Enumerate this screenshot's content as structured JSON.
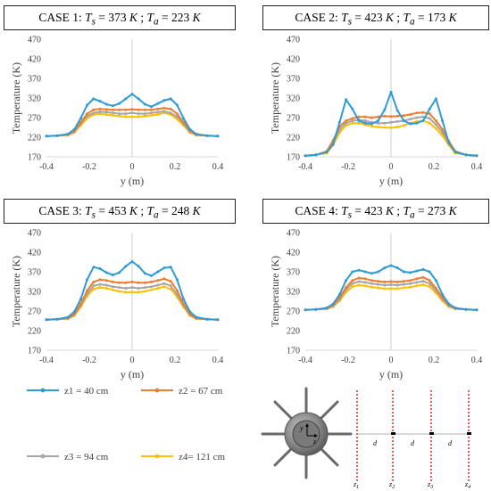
{
  "colors": {
    "z1": "#2E9BD6",
    "z2": "#ED7D31",
    "z3": "#A5A5A5",
    "z4": "#FFC000",
    "axis": "#d9d9d9",
    "text": "#404040",
    "probe": "#e00000"
  },
  "chart_data": [
    {
      "type": "line",
      "title": {
        "prefix": "CASE 1: ",
        "ts_value": "373",
        "ta_value": "223"
      },
      "xlabel": "y (m)",
      "ylabel": "Temperature (K)",
      "xlim": [
        -0.4,
        0.4
      ],
      "ylim": [
        170,
        470
      ],
      "xticks": [
        "-0.4",
        "-0.2",
        "0",
        "0.2",
        "0.4"
      ],
      "yticks": [
        "170",
        "220",
        "270",
        "320",
        "370",
        "420",
        "470"
      ],
      "x": [
        -0.4,
        -0.35,
        -0.3,
        -0.27,
        -0.24,
        -0.21,
        -0.18,
        -0.15,
        -0.12,
        -0.09,
        -0.06,
        -0.03,
        0,
        0.03,
        0.06,
        0.09,
        0.12,
        0.15,
        0.18,
        0.21,
        0.24,
        0.27,
        0.3,
        0.35,
        0.4
      ],
      "series": [
        {
          "name": "z1 = 40 cm",
          "values": [
            223,
            224,
            228,
            240,
            268,
            302,
            318,
            312,
            304,
            300,
            306,
            318,
            330,
            318,
            304,
            298,
            306,
            314,
            318,
            302,
            268,
            240,
            228,
            224,
            223
          ]
        },
        {
          "name": "z2 = 67 cm",
          "values": [
            223,
            224,
            227,
            236,
            258,
            280,
            290,
            292,
            291,
            290,
            290,
            290,
            291,
            290,
            290,
            290,
            292,
            294,
            292,
            280,
            258,
            236,
            227,
            224,
            223
          ]
        },
        {
          "name": "z3 = 94 cm",
          "values": [
            223,
            224,
            226,
            234,
            254,
            274,
            282,
            285,
            284,
            282,
            280,
            280,
            282,
            280,
            280,
            282,
            284,
            286,
            282,
            272,
            254,
            234,
            226,
            224,
            223
          ]
        },
        {
          "name": "z4= 121 cm",
          "values": [
            223,
            224,
            225,
            232,
            250,
            268,
            278,
            280,
            278,
            276,
            274,
            272,
            272,
            272,
            274,
            276,
            278,
            282,
            278,
            266,
            250,
            232,
            225,
            224,
            223
          ]
        }
      ]
    },
    {
      "type": "line",
      "title": {
        "prefix": "CASE 2: ",
        "ts_value": "423",
        "ta_value": "173"
      },
      "xlabel": "y (m)",
      "ylabel": "Temperature (K)",
      "xlim": [
        -0.4,
        0.4
      ],
      "ylim": [
        170,
        470
      ],
      "xticks": [
        "-0.4",
        "-0.2",
        "0",
        "0.2",
        "0.4"
      ],
      "yticks": [
        "170",
        "220",
        "270",
        "320",
        "370",
        "420",
        "470"
      ],
      "x": [
        -0.4,
        -0.35,
        -0.3,
        -0.27,
        -0.24,
        -0.21,
        -0.18,
        -0.15,
        -0.12,
        -0.09,
        -0.06,
        -0.03,
        0,
        0.03,
        0.06,
        0.09,
        0.12,
        0.15,
        0.18,
        0.21,
        0.24,
        0.27,
        0.3,
        0.35,
        0.4
      ],
      "series": [
        {
          "name": "z1 = 40 cm",
          "values": [
            173,
            175,
            182,
            202,
            258,
            316,
            292,
            262,
            256,
            254,
            262,
            290,
            335,
            288,
            262,
            254,
            256,
            262,
            292,
            318,
            262,
            205,
            182,
            175,
            173
          ]
        },
        {
          "name": "z2 = 67 cm",
          "values": [
            173,
            175,
            184,
            212,
            248,
            262,
            268,
            272,
            272,
            270,
            272,
            274,
            273,
            274,
            275,
            278,
            282,
            283,
            280,
            262,
            240,
            210,
            184,
            175,
            173
          ]
        },
        {
          "name": "z3 = 94 cm",
          "values": [
            173,
            175,
            182,
            206,
            240,
            256,
            262,
            264,
            262,
            258,
            256,
            256,
            258,
            260,
            262,
            266,
            270,
            272,
            268,
            252,
            232,
            206,
            182,
            175,
            173
          ]
        },
        {
          "name": "z4= 121 cm",
          "values": [
            173,
            175,
            180,
            200,
            232,
            250,
            256,
            256,
            252,
            248,
            246,
            245,
            244,
            246,
            250,
            256,
            260,
            262,
            256,
            242,
            224,
            200,
            180,
            175,
            173
          ]
        }
      ]
    },
    {
      "type": "line",
      "title": {
        "prefix": "CASE 3: ",
        "ts_value": "453",
        "ta_value": "248"
      },
      "xlabel": "y (m)",
      "ylabel": "Temperature (K)",
      "xlim": [
        -0.4,
        0.4
      ],
      "ylim": [
        170,
        470
      ],
      "xticks": [
        "-0.4",
        "-0.2",
        "0",
        "0.2",
        "0.4"
      ],
      "yticks": [
        "170",
        "220",
        "270",
        "320",
        "370",
        "420",
        "470"
      ],
      "x": [
        -0.4,
        -0.35,
        -0.3,
        -0.27,
        -0.24,
        -0.21,
        -0.18,
        -0.15,
        -0.12,
        -0.09,
        -0.06,
        -0.03,
        0,
        0.03,
        0.06,
        0.09,
        0.12,
        0.15,
        0.18,
        0.21,
        0.24,
        0.27,
        0.3,
        0.35,
        0.4
      ],
      "series": [
        {
          "name": "z1 = 40 cm",
          "values": [
            248,
            249,
            254,
            268,
            300,
            350,
            382,
            378,
            368,
            362,
            368,
            384,
            396,
            384,
            366,
            360,
            370,
            380,
            382,
            350,
            300,
            268,
            254,
            249,
            248
          ]
        },
        {
          "name": "z2 = 67 cm",
          "values": [
            248,
            249,
            252,
            262,
            288,
            322,
            344,
            350,
            348,
            344,
            342,
            342,
            344,
            342,
            342,
            344,
            348,
            352,
            346,
            322,
            288,
            262,
            252,
            249,
            248
          ]
        },
        {
          "name": "z3 = 94 cm",
          "values": [
            248,
            249,
            251,
            260,
            284,
            314,
            334,
            338,
            336,
            332,
            330,
            328,
            330,
            328,
            330,
            332,
            336,
            340,
            334,
            312,
            284,
            260,
            251,
            249,
            248
          ]
        },
        {
          "name": "z4= 121 cm",
          "values": [
            248,
            249,
            250,
            258,
            280,
            308,
            326,
            330,
            328,
            324,
            320,
            318,
            318,
            318,
            320,
            324,
            328,
            332,
            326,
            306,
            280,
            258,
            250,
            249,
            248
          ]
        }
      ]
    },
    {
      "type": "line",
      "title": {
        "prefix": "CASE 4: ",
        "ts_value": "423",
        "ta_value": "273"
      },
      "xlabel": "y (m)",
      "ylabel": "Temperature (K)",
      "xlim": [
        -0.4,
        0.4
      ],
      "ylim": [
        170,
        470
      ],
      "xticks": [
        "-0.4",
        "-0.2",
        "0",
        "0.2",
        "0.4"
      ],
      "yticks": [
        "170",
        "220",
        "270",
        "320",
        "370",
        "420",
        "470"
      ],
      "x": [
        -0.4,
        -0.35,
        -0.3,
        -0.27,
        -0.24,
        -0.21,
        -0.18,
        -0.15,
        -0.12,
        -0.09,
        -0.06,
        -0.03,
        0,
        0.03,
        0.06,
        0.09,
        0.12,
        0.15,
        0.18,
        0.21,
        0.24,
        0.27,
        0.3,
        0.35,
        0.4
      ],
      "series": [
        {
          "name": "z1 = 40 cm",
          "values": [
            273,
            274,
            278,
            288,
            312,
            348,
            370,
            374,
            370,
            366,
            370,
            380,
            386,
            380,
            370,
            368,
            372,
            376,
            370,
            348,
            312,
            288,
            278,
            274,
            273
          ]
        },
        {
          "name": "z2 = 67 cm",
          "values": [
            273,
            274,
            277,
            285,
            304,
            330,
            348,
            354,
            352,
            348,
            346,
            344,
            345,
            344,
            346,
            348,
            352,
            356,
            348,
            328,
            304,
            285,
            277,
            274,
            273
          ]
        },
        {
          "name": "z3 = 94 cm",
          "values": [
            273,
            274,
            276,
            283,
            300,
            324,
            340,
            345,
            343,
            340,
            338,
            336,
            337,
            336,
            338,
            340,
            343,
            346,
            340,
            322,
            300,
            283,
            276,
            274,
            273
          ]
        },
        {
          "name": "z4= 121 cm",
          "values": [
            273,
            274,
            275,
            281,
            296,
            318,
            332,
            336,
            334,
            331,
            329,
            327,
            327,
            327,
            329,
            331,
            334,
            337,
            332,
            316,
            296,
            281,
            275,
            274,
            273
          ]
        }
      ]
    }
  ],
  "legend": [
    {
      "label": "z1 = 40 cm",
      "series": "z1"
    },
    {
      "label": "z2 = 67 cm",
      "series": "z2"
    },
    {
      "label": "z3 = 94 cm",
      "series": "z3"
    },
    {
      "label": "z4= 121 cm",
      "series": "z4"
    }
  ],
  "schematic": {
    "axis_y": "y",
    "axis_z": "z",
    "spacing_label": "d",
    "probe_labels": [
      "z",
      "z",
      "z",
      "z"
    ],
    "probe_subscripts": [
      "1",
      "2",
      "3",
      "4"
    ]
  }
}
